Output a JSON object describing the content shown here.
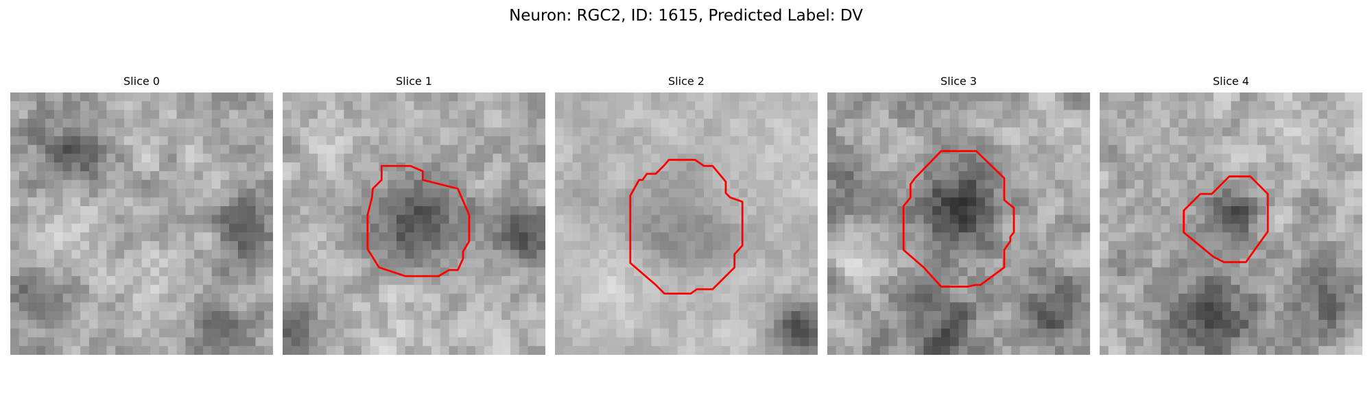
{
  "figure": {
    "title": "Neuron: RGC2, ID: 1615, Predicted Label: DV",
    "outline_color": "#ff0000",
    "colormap": "gray",
    "grid_size": 30
  },
  "panels": [
    {
      "title": "Slice 0",
      "has_outline": false
    },
    {
      "title": "Slice 1",
      "has_outline": true
    },
    {
      "title": "Slice 2",
      "has_outline": true
    },
    {
      "title": "Slice 3",
      "has_outline": true
    },
    {
      "title": "Slice 4",
      "has_outline": true
    }
  ]
}
